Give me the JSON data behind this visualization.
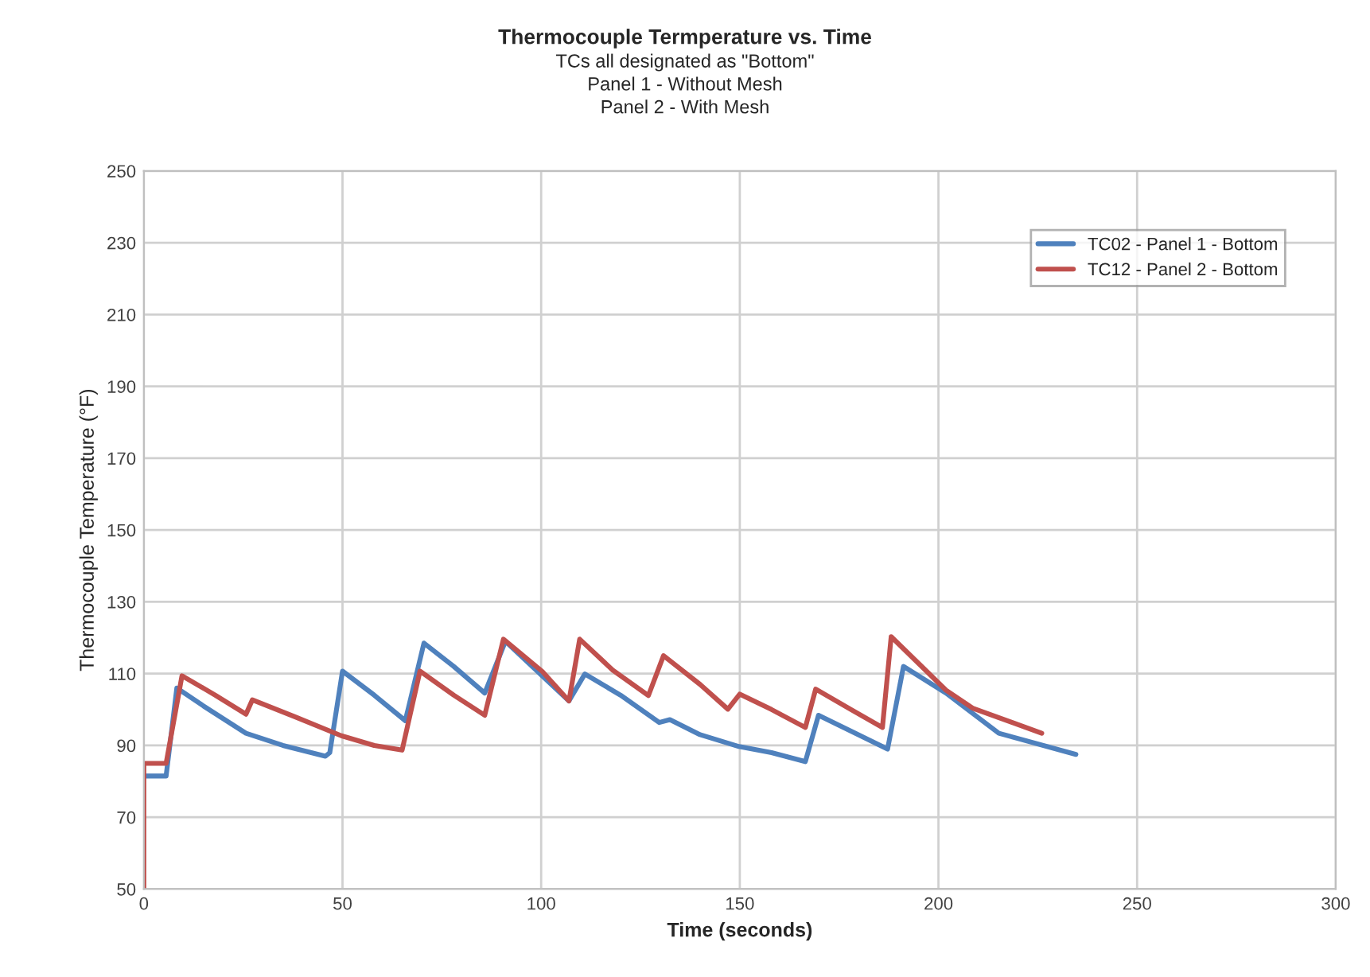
{
  "chart_data": {
    "type": "line",
    "title": "Thermocouple Termperature vs. Time",
    "subtitle": "TCs all designated as \"Bottom\"\nPanel 1 - Without Mesh\nPanel 2 - With Mesh",
    "xlabel": "Time (seconds)",
    "ylabel": "Thermocouple Temperature (°F)",
    "series": [
      {
        "name": "TC02 - Panel 1 - Bottom",
        "color": "#4f81bd",
        "x": [
          0,
          5.6,
          8.3,
          15,
          25.7,
          35,
          45.7,
          46.8,
          50,
          58,
          65.8,
          66.5,
          70.5,
          78,
          85.8,
          91,
          107,
          111,
          120,
          129.7,
          132.4,
          140,
          149.8,
          158,
          166.5,
          169.8,
          178,
          187.2,
          191.2,
          201.9,
          215.2,
          234.6
        ],
        "values": [
          81.5,
          81.5,
          106,
          101,
          93.4,
          90,
          87,
          88,
          110.7,
          104,
          96.9,
          100,
          118.5,
          112,
          104.6,
          119,
          102.4,
          109.9,
          104,
          96.4,
          97.2,
          93,
          89.7,
          88,
          85.5,
          98.4,
          94,
          89,
          112,
          104.6,
          93.4,
          87.5
        ]
      },
      {
        "name": "TC12 - Panel 2 - Bottom",
        "color": "#c0504d",
        "x": [
          0,
          0,
          5.6,
          9.6,
          18,
          25.7,
          27.3,
          38,
          49.7,
          58,
          65,
          69.5,
          78,
          85.8,
          90.5,
          100.3,
          107,
          109.7,
          118,
          127,
          130.8,
          140,
          147,
          150,
          158,
          166.5,
          169.1,
          178,
          185.9,
          188.1,
          201.9,
          208.6,
          226
        ],
        "values": [
          50,
          85,
          85,
          109.4,
          104,
          98.7,
          102.7,
          98,
          92.7,
          90,
          88.7,
          110.7,
          104,
          98.4,
          119.6,
          110.6,
          102.4,
          119.6,
          111,
          103.9,
          115,
          107,
          100.1,
          104.3,
          100,
          95,
          105.7,
          100,
          95,
          120.3,
          105.4,
          100.4,
          93.4
        ]
      }
    ],
    "xlim": [
      0,
      300
    ],
    "xticks": [
      0,
      50,
      100,
      150,
      200,
      250,
      300
    ],
    "ylim": [
      50,
      250
    ],
    "yticks": [
      50,
      70,
      90,
      110,
      130,
      150,
      170,
      190,
      210,
      230,
      250
    ],
    "grid": true,
    "legend": "top right",
    "marker": "none",
    "line_style": "solid"
  }
}
